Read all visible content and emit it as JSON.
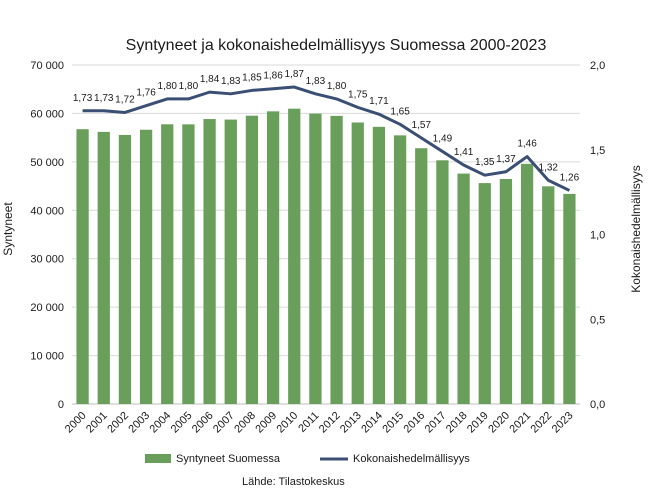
{
  "chart_data": {
    "type": "bar",
    "title": "Syntyneet ja kokonaishedelmällisyys Suomessa 2000-2023",
    "categories": [
      "2000",
      "2001",
      "2002",
      "2003",
      "2004",
      "2005",
      "2006",
      "2007",
      "2008",
      "2009",
      "2010",
      "2011",
      "2012",
      "2013",
      "2014",
      "2015",
      "2016",
      "2017",
      "2018",
      "2019",
      "2020",
      "2021",
      "2022",
      "2023"
    ],
    "series": [
      {
        "name": "Syntyneet Suomessa",
        "type": "bar",
        "axis": "left",
        "color": "#6a9f5b",
        "values": [
          56742,
          56189,
          55555,
          56630,
          57758,
          57745,
          58840,
          58729,
          59530,
          60430,
          60980,
          59961,
          59493,
          58134,
          57232,
          55472,
          52814,
          50321,
          47577,
          45613,
          46463,
          49594,
          44951,
          43383
        ]
      },
      {
        "name": "Kokonaishedelmällisyys",
        "type": "line",
        "axis": "right",
        "color": "#3a4f73",
        "values": [
          1.73,
          1.73,
          1.72,
          1.76,
          1.8,
          1.8,
          1.84,
          1.83,
          1.85,
          1.86,
          1.87,
          1.83,
          1.8,
          1.75,
          1.71,
          1.65,
          1.57,
          1.49,
          1.41,
          1.35,
          1.37,
          1.46,
          1.32,
          1.26
        ],
        "labels": [
          "1,73",
          "1,73",
          "1,72",
          "1,76",
          "1,80",
          "1,80",
          "1,84",
          "1,83",
          "1,85",
          "1,86",
          "1,87",
          "1,83",
          "1,80",
          "1,75",
          "1,71",
          "1,65",
          "1,57",
          "1,49",
          "1,41",
          "1,35",
          "1,37",
          "1,46",
          "1,32",
          "1,26"
        ]
      }
    ],
    "ylabel": "Syntyneet",
    "y2label": "Kokonaishedelmällisyys",
    "ylim": [
      0,
      70000
    ],
    "y2lim": [
      0,
      2.0
    ],
    "yticks": [
      0,
      10000,
      20000,
      30000,
      40000,
      50000,
      60000,
      70000
    ],
    "ytick_labels": [
      "0",
      "10 000",
      "20 000",
      "30 000",
      "40 000",
      "50 000",
      "60 000",
      "70 000"
    ],
    "y2ticks": [
      0,
      0.5,
      1.0,
      1.5,
      2.0
    ],
    "y2tick_labels": [
      "0,0",
      "0,5",
      "1,0",
      "1,5",
      "2,0"
    ],
    "grid": true,
    "legend_position": "bottom",
    "source": "Lähde: Tilastokeskus"
  }
}
